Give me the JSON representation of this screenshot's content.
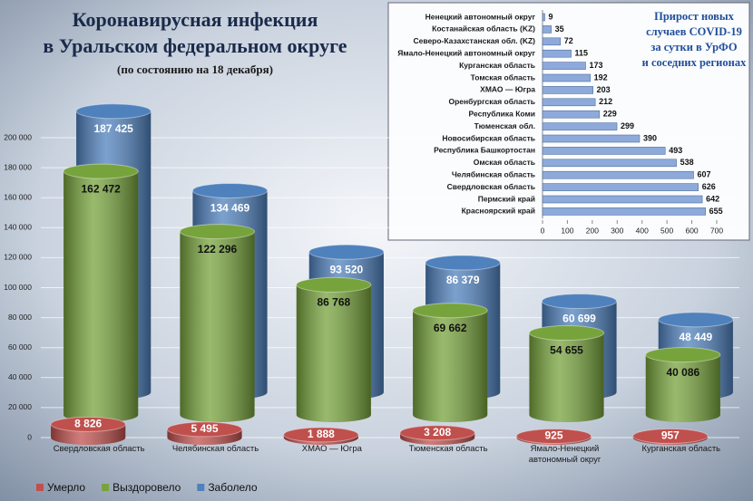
{
  "chart_data": [
    {
      "type": "cylinder-bar",
      "title": [
        "Коронавирусная инфекция",
        "в Уральском федеральном округе"
      ],
      "subtitle": "(по состоянию на 18 декабря)",
      "categories": [
        "Свердловская область",
        "Челябинская область",
        "ХМАО — Югра",
        "Тюменская область",
        "Ямало-Ненецкий автономный округ",
        "Курганская область"
      ],
      "series": [
        {
          "name": "Умерло",
          "color": "#c0504d",
          "values": [
            8826,
            5495,
            1888,
            3208,
            925,
            957
          ],
          "value_labels": [
            "8 826",
            "5 495",
            "1 888",
            "3 208",
            "925",
            "957"
          ]
        },
        {
          "name": "Выздоровело",
          "color": "#77a33c",
          "values": [
            162472,
            122296,
            86768,
            69662,
            54655,
            40086
          ],
          "value_labels": [
            "162 472",
            "122 296",
            "86 768",
            "69 662",
            "54 655",
            "40 086"
          ]
        },
        {
          "name": "Заболело",
          "color": "#4f81bd",
          "values": [
            187425,
            134469,
            93520,
            86379,
            60699,
            48449
          ],
          "value_labels": [
            "187 425",
            "134 469",
            "93 520",
            "86 379",
            "60 699",
            "48 449"
          ]
        }
      ],
      "ylim": [
        0,
        200000
      ],
      "yticks": [
        0,
        {
          "value": 20000,
          "label": "20 000"
        },
        {
          "value": 40000,
          "label": "40 000"
        },
        {
          "value": 60000,
          "label": "60 000"
        },
        {
          "value": 80000,
          "label": "80 000"
        },
        {
          "value": 100000,
          "label": "100 000"
        },
        {
          "value": 120000,
          "label": "120 000"
        },
        {
          "value": 140000,
          "label": "140 000"
        },
        {
          "value": 160000,
          "label": "160 000"
        },
        {
          "value": 180000,
          "label": "180 000"
        },
        {
          "value": 200000,
          "label": "200 000"
        }
      ],
      "grid": true,
      "legend": "bottom-left"
    },
    {
      "type": "hbar",
      "title": [
        "Прирост новых",
        "случаев COVID-19",
        "за сутки в УрФО",
        "и соседних регионах"
      ],
      "categories": [
        "Ненецкий автономный округ",
        "Костанайская область (KZ)",
        "Северо-Казахстанская обл. (KZ)",
        "Ямало-Ненецкий автономный округ",
        "Курганская область",
        "Томская область",
        "ХМАО — Югра",
        "Оренбургская область",
        "Республика Коми",
        "Тюменская обл.",
        "Новосибирская область",
        "Республика Башкортостан",
        "Омская область",
        "Челябинская область",
        "Свердловская область",
        "Пермский край",
        "Красноярский край"
      ],
      "values": [
        9,
        35,
        72,
        115,
        173,
        192,
        203,
        212,
        229,
        299,
        390,
        493,
        538,
        607,
        626,
        642,
        655
      ],
      "color": "#8eaadb",
      "xlim": [
        0,
        700
      ],
      "xticks": [
        0,
        100,
        200,
        300,
        400,
        500,
        600,
        700
      ]
    }
  ]
}
